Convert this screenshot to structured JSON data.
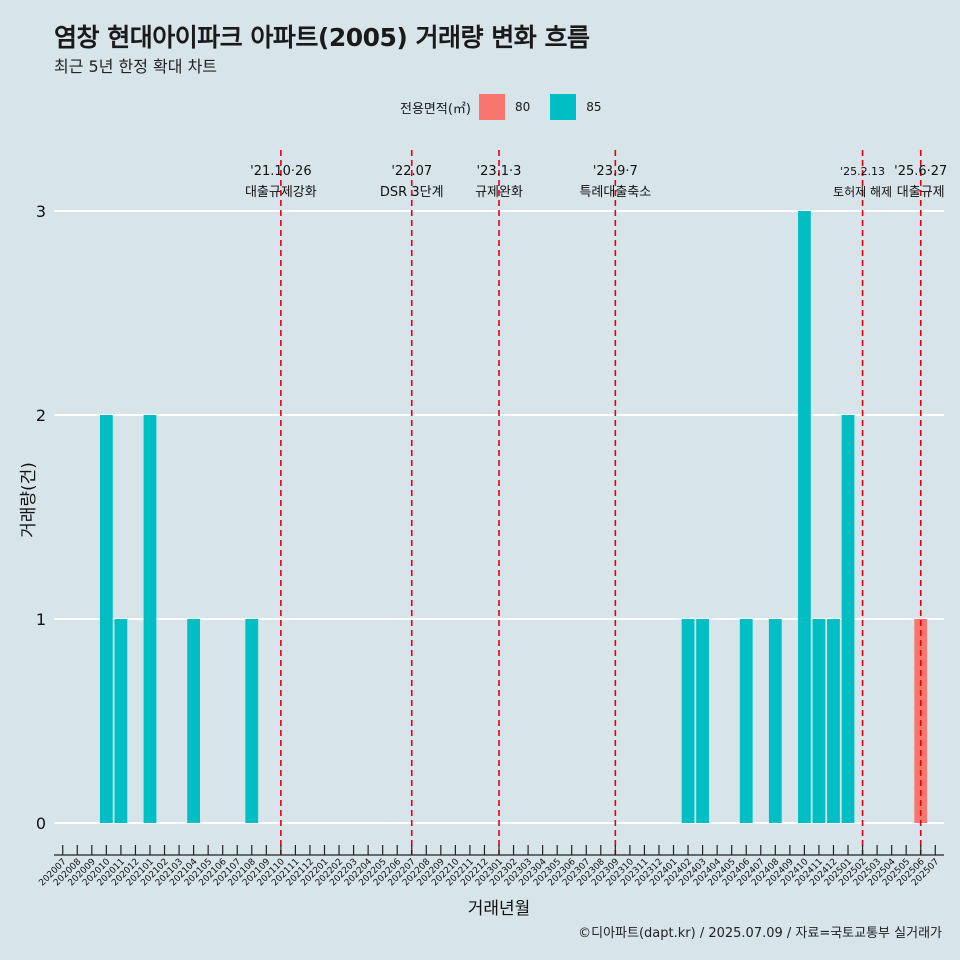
{
  "header": {
    "title": "염창 현대아이파크 아파트(2005) 거래량 변화 흐름",
    "subtitle": "최근 5년 한정 확대 차트"
  },
  "legend": {
    "title": "전용면적(㎡)",
    "items": [
      {
        "label": "80",
        "color": "#F8766D"
      },
      {
        "label": "85",
        "color": "#00BFC4"
      }
    ]
  },
  "footer": {
    "credit": "©디아파트(dapt.kr) / 2025.07.09 / 자료=국토교통부 실거래가"
  },
  "chart_data": {
    "type": "bar",
    "title": "염창 현대아이파크 아파트(2005) 거래량 변화 흐름",
    "xlabel": "거래년월",
    "ylabel": "거래량(건)",
    "ylim": [
      0,
      3
    ],
    "yticks": [
      0,
      1,
      2,
      3
    ],
    "grid": "horizontal",
    "legend_position": "top",
    "categories": [
      "202007",
      "202008",
      "202009",
      "202010",
      "202011",
      "202012",
      "202101",
      "202102",
      "202103",
      "202104",
      "202105",
      "202106",
      "202107",
      "202108",
      "202109",
      "202110",
      "202111",
      "202112",
      "202201",
      "202202",
      "202203",
      "202204",
      "202205",
      "202206",
      "202207",
      "202208",
      "202209",
      "202210",
      "202211",
      "202212",
      "202301",
      "202302",
      "202303",
      "202304",
      "202305",
      "202306",
      "202307",
      "202308",
      "202309",
      "202310",
      "202311",
      "202312",
      "202401",
      "202402",
      "202403",
      "202404",
      "202405",
      "202406",
      "202407",
      "202408",
      "202409",
      "202410",
      "202411",
      "202412",
      "202501",
      "202502",
      "202503",
      "202504",
      "202505",
      "202506",
      "202507"
    ],
    "series": [
      {
        "name": "80",
        "color": "#F8766D",
        "values": [
          0,
          0,
          0,
          0,
          0,
          0,
          0,
          0,
          0,
          0,
          0,
          0,
          0,
          0,
          0,
          0,
          0,
          0,
          0,
          0,
          0,
          0,
          0,
          0,
          0,
          0,
          0,
          0,
          0,
          0,
          0,
          0,
          0,
          0,
          0,
          0,
          0,
          0,
          0,
          0,
          0,
          0,
          0,
          0,
          0,
          0,
          0,
          0,
          0,
          0,
          0,
          0,
          0,
          0,
          0,
          0,
          0,
          0,
          0,
          1,
          0
        ]
      },
      {
        "name": "85",
        "color": "#00BFC4",
        "values": [
          0,
          0,
          0,
          2,
          1,
          0,
          2,
          0,
          0,
          1,
          0,
          0,
          0,
          1,
          0,
          0,
          0,
          0,
          0,
          0,
          0,
          0,
          0,
          0,
          0,
          0,
          0,
          0,
          0,
          0,
          0,
          0,
          0,
          0,
          0,
          0,
          0,
          0,
          0,
          0,
          0,
          0,
          0,
          1,
          1,
          0,
          0,
          1,
          0,
          1,
          0,
          3,
          1,
          1,
          2,
          0,
          0,
          0,
          0,
          0,
          0
        ]
      }
    ],
    "annotations": [
      {
        "date": "'21.10·26",
        "label": "대출규제강화",
        "at": "202110"
      },
      {
        "date": "'22.07",
        "label": "DSR 3단계",
        "at": "202207"
      },
      {
        "date": "'23.1·3",
        "label": "규제완화",
        "at": "202301"
      },
      {
        "date": "'23.9·7",
        "label": "특례대출축소",
        "at": "202309"
      },
      {
        "date": "'25.2.13",
        "label": "토허제 해제",
        "at": "202502"
      },
      {
        "date": "'25.6·27",
        "label": "대출규제",
        "at": "202506"
      }
    ]
  }
}
